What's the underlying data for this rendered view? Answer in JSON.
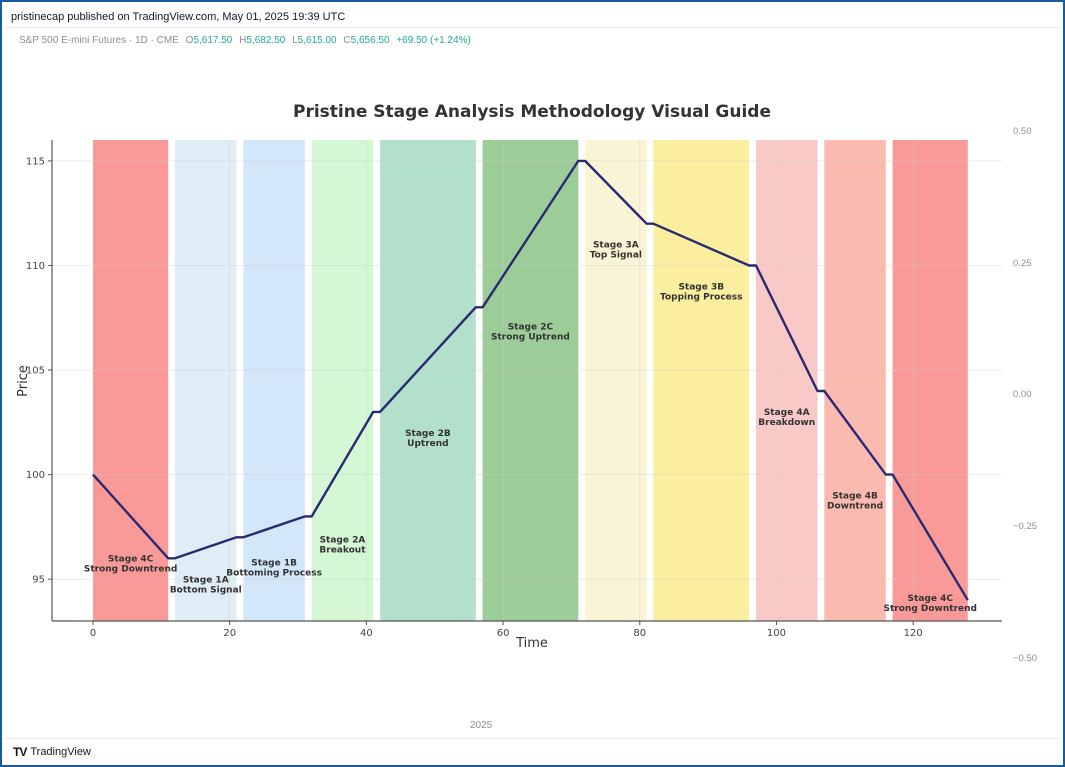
{
  "header": {
    "published": "pristinecap published on TradingView.com, May 01, 2025 19:39 UTC"
  },
  "legend": {
    "symbol": "S&P 500 E-mini Futures · 1D · CME",
    "o_label": "O",
    "o_value": "5,617.50",
    "h_label": "H",
    "h_value": "5,682.50",
    "l_label": "L",
    "l_value": "5,615.00",
    "c_label": "C",
    "c_value": "5,656.50",
    "change": "+69.50 (+1.24%)"
  },
  "right_axis": {
    "labels": [
      "0.50",
      "0.25",
      "0.00",
      "−0.25",
      "−0.50"
    ]
  },
  "time_axis": {
    "label": "2025"
  },
  "footer": {
    "brand": "TradingView",
    "logo_icon": "tradingview-logo-icon"
  },
  "chart_data": {
    "type": "line",
    "title": "Pristine Stage Analysis Methodology Visual Guide",
    "xlabel": "Time",
    "ylabel": "Price",
    "xlim": [
      -6,
      133
    ],
    "ylim": [
      93,
      116
    ],
    "xticks": [
      0,
      20,
      40,
      60,
      80,
      100,
      120
    ],
    "yticks": [
      95,
      100,
      105,
      110,
      115
    ],
    "grid": true,
    "line_color": "#2a2a72",
    "series": [
      {
        "x": [
          0,
          11,
          12,
          21,
          22,
          31,
          32,
          41,
          42,
          56,
          57,
          71,
          72,
          81,
          82,
          96,
          97,
          106,
          107,
          116,
          117,
          128
        ],
        "y": [
          100,
          96,
          96,
          97,
          97,
          98,
          98,
          103,
          103,
          108,
          108,
          115,
          115,
          112,
          112,
          110,
          110,
          104,
          104,
          100,
          100,
          94
        ]
      }
    ],
    "stages": [
      {
        "start": 0,
        "end": 11,
        "color": "#f99a99",
        "line1": "Stage 4C",
        "line2": "Strong Downtrend",
        "lx": 5.5,
        "ly": 95.8
      },
      {
        "start": 12,
        "end": 21,
        "color": "#deedf6",
        "line1": "Stage 1A",
        "line2": "Bottom Signal",
        "lx": 16.5,
        "ly": 94.8
      },
      {
        "start": 22,
        "end": 31,
        "color": "#d3e7fa",
        "line1": "Stage 1B",
        "line2": "Bottoming Process",
        "lx": 26.5,
        "ly": 95.6
      },
      {
        "start": 32,
        "end": 41,
        "color": "#d4f7d4",
        "line1": "Stage 2A",
        "line2": "Breakout",
        "lx": 36.5,
        "ly": 96.7
      },
      {
        "start": 42,
        "end": 56,
        "color": "#b3e0cb",
        "line1": "Stage 2B",
        "line2": "Uptrend",
        "lx": 49,
        "ly": 101.8
      },
      {
        "start": 57,
        "end": 71,
        "color": "#9ccc98",
        "line1": "Stage 2C",
        "line2": "Strong Uptrend",
        "lx": 64,
        "ly": 106.9
      },
      {
        "start": 72,
        "end": 81,
        "color": "#f8f4d5",
        "line1": "Stage 3A",
        "line2": "Top Signal",
        "lx": 76.5,
        "ly": 110.8
      },
      {
        "start": 82,
        "end": 96,
        "color": "#fbee9e",
        "line1": "Stage 3B",
        "line2": "Topping Process",
        "lx": 89,
        "ly": 108.8
      },
      {
        "start": 97,
        "end": 106,
        "color": "#f8c9c7",
        "line1": "Stage 4A",
        "line2": "Breakdown",
        "lx": 101.5,
        "ly": 102.8
      },
      {
        "start": 107,
        "end": 116,
        "color": "#fbbab0",
        "line1": "Stage 4B",
        "line2": "Downtrend",
        "lx": 111.5,
        "ly": 98.8
      },
      {
        "start": 117,
        "end": 128,
        "color": "#f99a99",
        "line1": "Stage 4C",
        "line2": "Strong Downtrend",
        "lx": 122.5,
        "ly": 93.9
      }
    ]
  }
}
